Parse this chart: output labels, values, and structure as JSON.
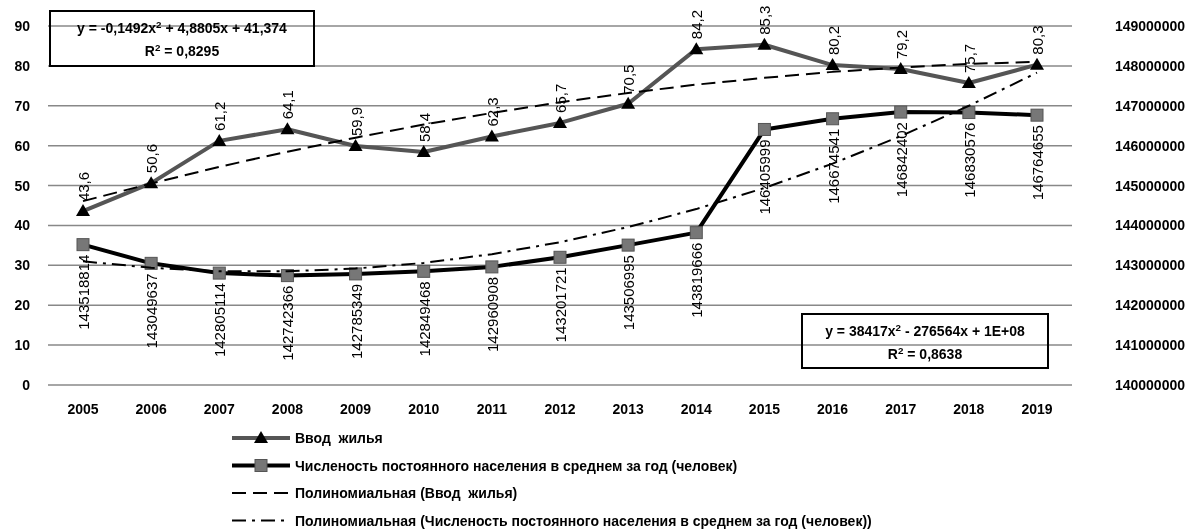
{
  "chart_data": {
    "type": "line",
    "categories": [
      "2005",
      "2006",
      "2007",
      "2008",
      "2009",
      "2010",
      "2011",
      "2012",
      "2013",
      "2014",
      "2015",
      "2016",
      "2017",
      "2018",
      "2019"
    ],
    "series": [
      {
        "name": "Ввод  жилья",
        "color": "#555555",
        "marker": "triangle",
        "values": [
          43.6,
          50.6,
          61.2,
          64.1,
          59.9,
          58.4,
          62.3,
          65.7,
          70.5,
          84.2,
          85.3,
          80.2,
          79.2,
          75.7,
          80.3
        ],
        "value_labels": [
          "43,6",
          "50,6",
          "61,2",
          "64,1",
          "59,9",
          "58,4",
          "62,3",
          "65,7",
          "70,5",
          "84,2",
          "85,3",
          "80,2",
          "79,2",
          "75,7",
          "80,3"
        ]
      },
      {
        "name": "Численость постоянного населения в среднем за год (человек)",
        "color": "#000000",
        "marker": "square",
        "axis": "y2",
        "values": [
          143518814,
          143049637,
          142805114,
          142742366,
          142785349,
          142849468,
          142960908,
          143201721,
          143506995,
          143819666,
          146405999,
          146674541,
          146842402,
          146830576,
          146764655
        ],
        "value_labels": [
          "143518814",
          "143049637",
          "142805114",
          "142742366",
          "142785349",
          "142849468",
          "142960908",
          "143201721",
          "143506995",
          "143819666",
          "146405999",
          "146674541",
          "146842402",
          "146830576",
          "146764655"
        ]
      },
      {
        "name": "Полиномиальная (Ввод  жилья)",
        "color": "#000000",
        "marker": "none",
        "line_style": "dashed",
        "values": [
          46.1,
          50.5,
          54.7,
          58.5,
          62.0,
          65.3,
          68.2,
          70.9,
          73.2,
          75.3,
          77.0,
          78.5,
          79.6,
          80.5,
          81.0
        ]
      },
      {
        "name": "Полиномиальная (Численость постоянного населения в среднем за год (человек))",
        "color": "#000000",
        "marker": "none",
        "line_style": "dashdot",
        "axis": "y2",
        "values": [
          143100000,
          142940000,
          142850000,
          142850000,
          142920000,
          143060000,
          143280000,
          143580000,
          143960000,
          144410000,
          144940000,
          145550000,
          146240000,
          147000000,
          147830000
        ]
      }
    ],
    "ylim": [
      0,
      90
    ],
    "yticks": [
      0,
      10,
      20,
      30,
      40,
      50,
      60,
      70,
      80,
      90
    ],
    "y2lim": [
      140000000,
      149000000
    ],
    "y2ticks": [
      140000000,
      141000000,
      142000000,
      143000000,
      144000000,
      145000000,
      146000000,
      147000000,
      148000000,
      149000000
    ],
    "grid": "y",
    "legend": "bottom",
    "annotations": [
      "y = -0,1492x$^{2}$ + 4,8805x + 41,374",
      "R$^{2}$ = 0,8295",
      "y = 38417x$^{2}$ - 276564x + 1E+08",
      "R$^{2}$ = 0,8638"
    ]
  }
}
